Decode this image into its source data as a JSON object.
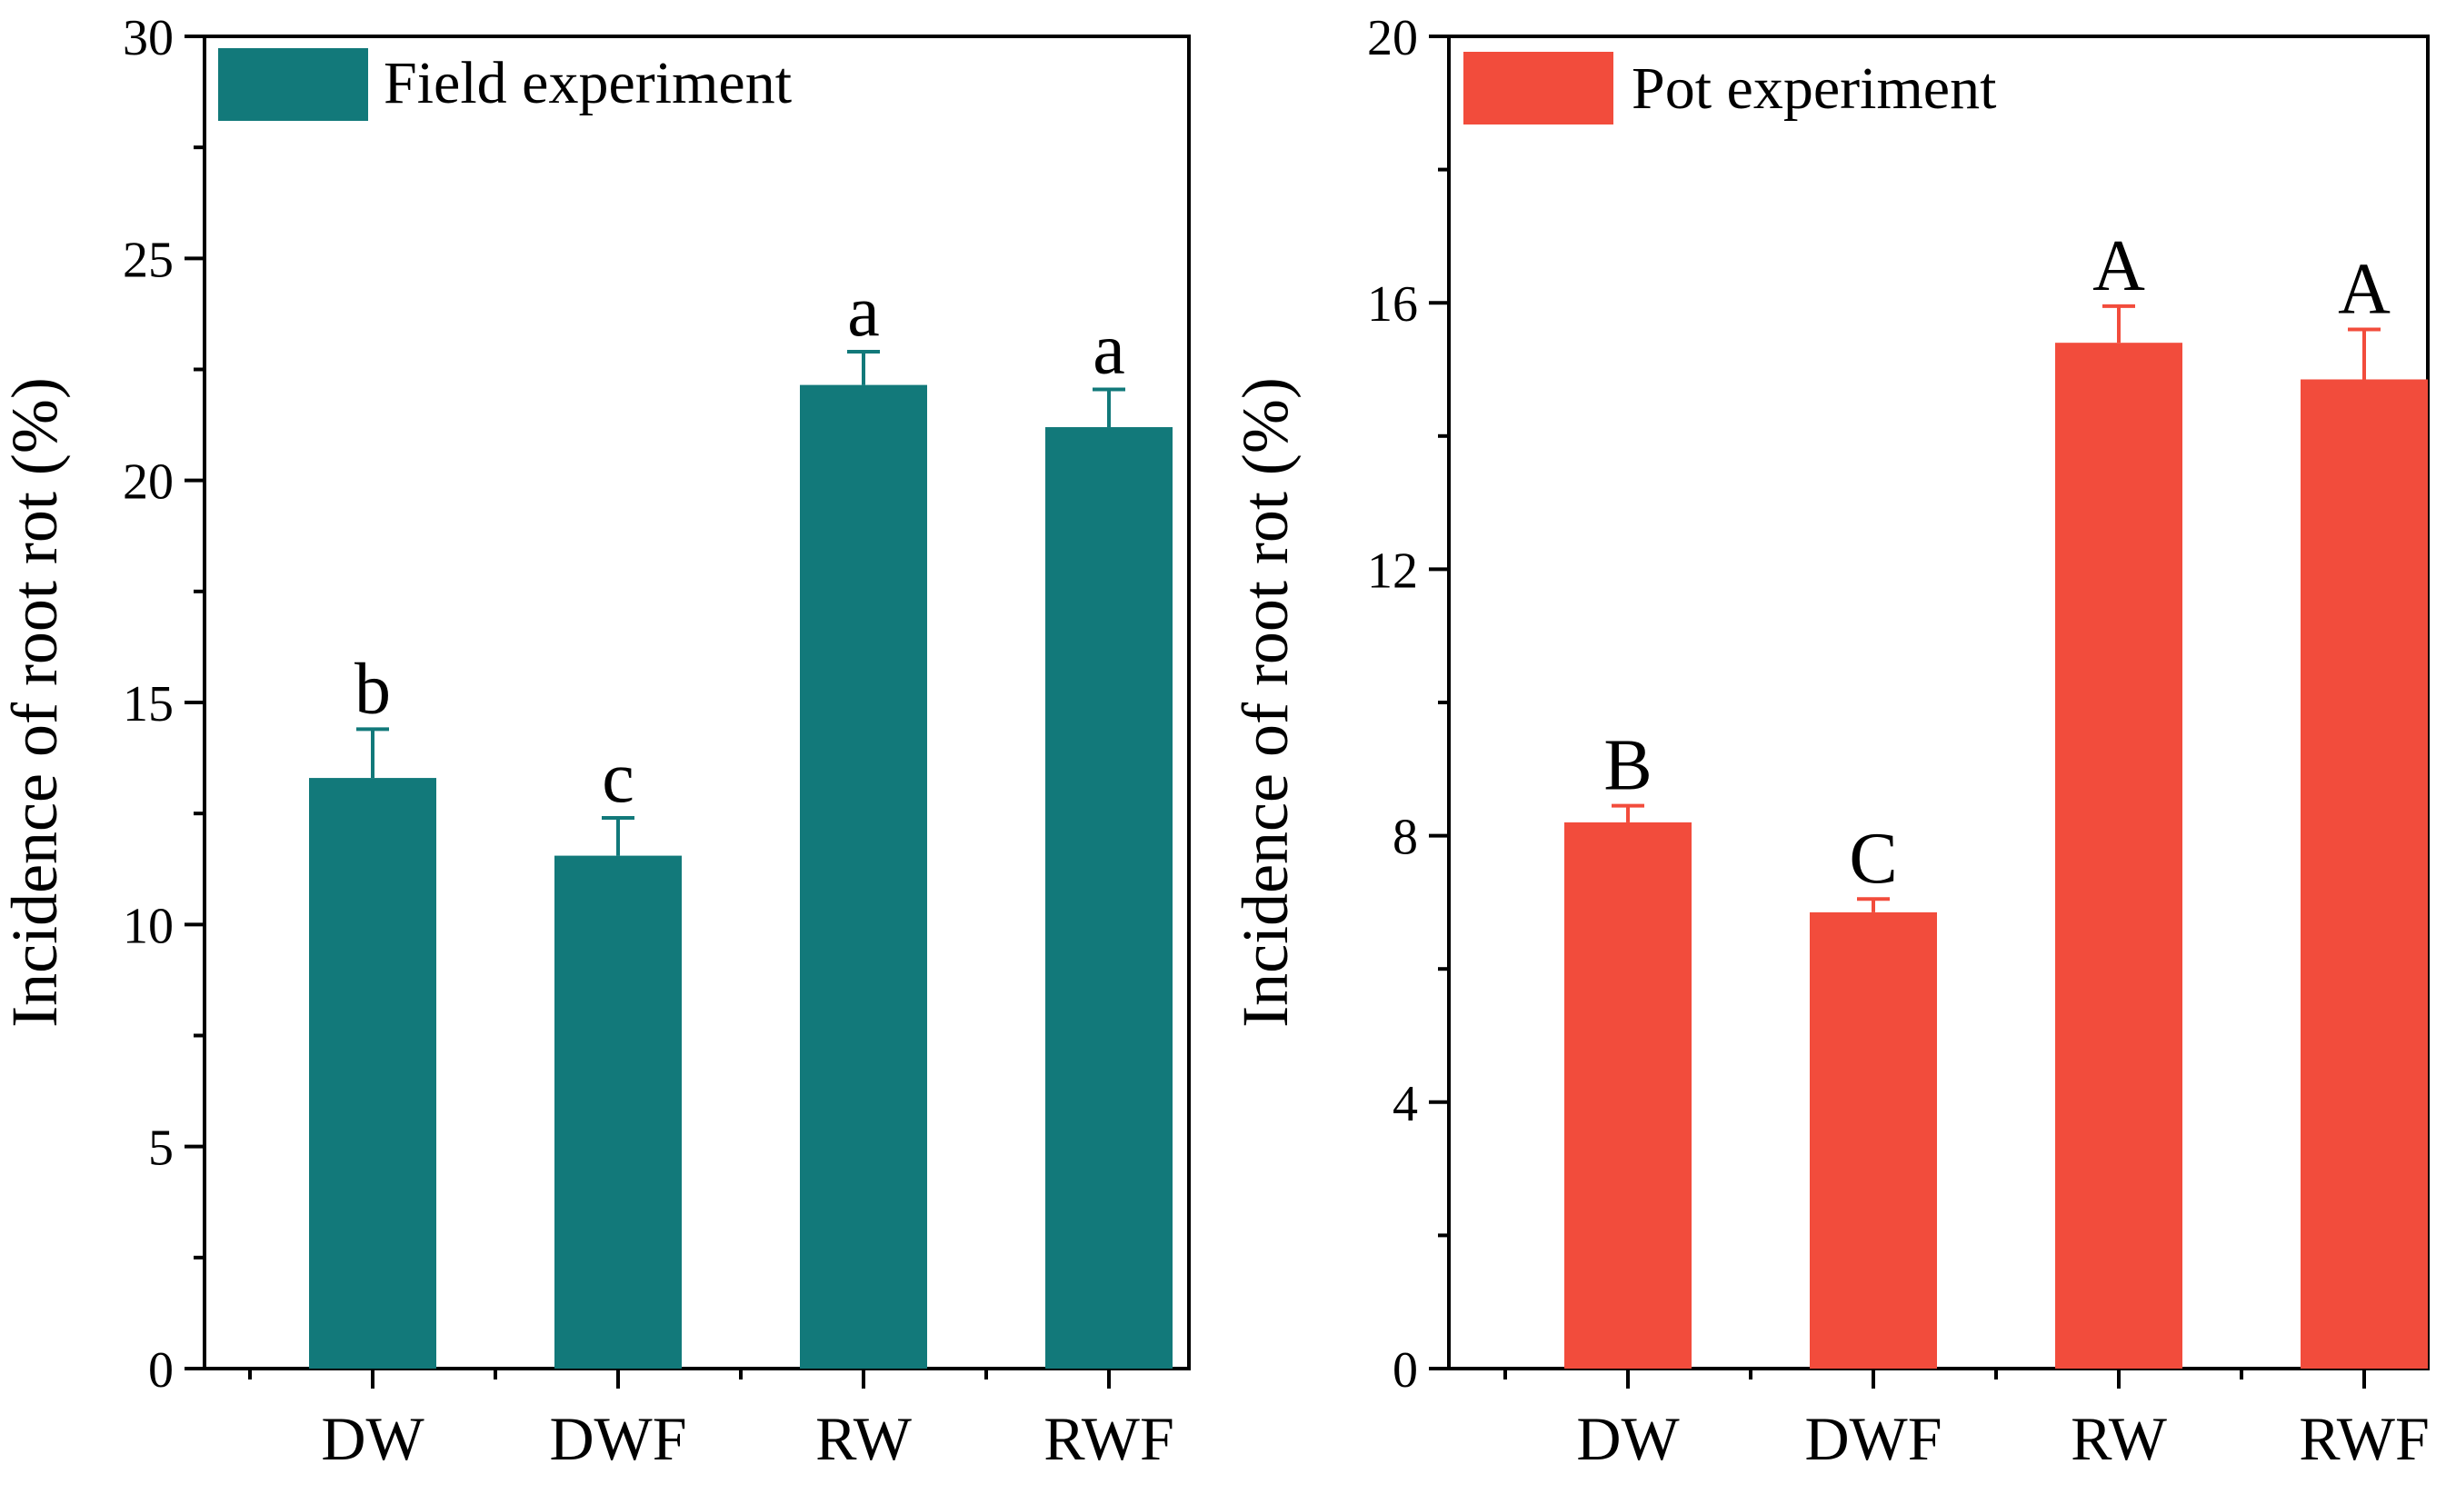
{
  "chart_data": [
    {
      "type": "bar",
      "panel": "left",
      "categories": [
        "DW",
        "DWF",
        "RW",
        "RWF"
      ],
      "values": [
        13.3,
        11.55,
        22.15,
        21.2
      ],
      "errors": [
        1.1,
        0.85,
        0.75,
        0.85
      ],
      "significance": [
        "b",
        "c",
        "a",
        "a"
      ],
      "legend": "Field experiment",
      "xlabel": "",
      "ylabel": "Incidence of root rot (%)",
      "ylim": [
        0,
        30
      ],
      "yticks": [
        0,
        5,
        10,
        15,
        20,
        25,
        30
      ],
      "color": "#12797a",
      "legend_position": "top-left",
      "grid": false
    },
    {
      "type": "bar",
      "panel": "right",
      "categories": [
        "DW",
        "DWF",
        "RW",
        "RWF"
      ],
      "values": [
        8.2,
        6.85,
        15.4,
        14.85
      ],
      "errors": [
        0.25,
        0.2,
        0.55,
        0.75
      ],
      "significance": [
        "B",
        "C",
        "A",
        "A"
      ],
      "legend": "Pot experiment",
      "xlabel": "",
      "ylabel": "Incidence of root rot (%)",
      "ylim": [
        0,
        20
      ],
      "yticks": [
        0,
        4,
        8,
        12,
        16,
        20
      ],
      "color": "#f24c3c",
      "legend_position": "top-left",
      "grid": false
    }
  ]
}
